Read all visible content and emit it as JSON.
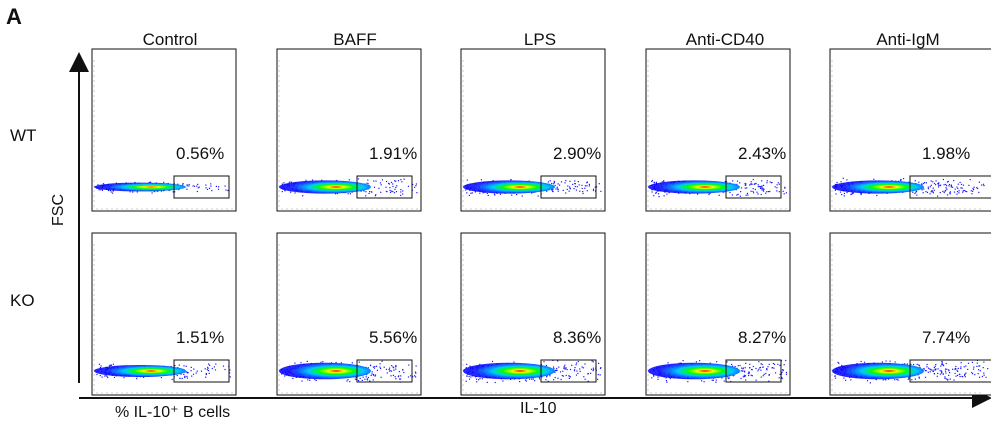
{
  "panel_letter": "A",
  "chart_data": {
    "type": "scatter",
    "xlabel": "IL-10",
    "ylabel": "FSC",
    "caption": "% IL-10⁺ B cells",
    "conditions": [
      "Control",
      "BAFF",
      "LPS",
      "Anti-CD40",
      "Anti-IgM"
    ],
    "rows": [
      {
        "name": "WT",
        "percents": [
          "0.56%",
          "1.91%",
          "2.90%",
          "2.43%",
          "1.98%"
        ]
      },
      {
        "name": "KO",
        "percents": [
          "1.51%",
          "5.56%",
          "8.36%",
          "8.27%",
          "7.74%"
        ]
      }
    ],
    "colors": {
      "low": "#0000ff",
      "mid": "#00c8ff",
      "midhigh": "#00ff00",
      "high": "#ffff00",
      "peak": "#ff0000"
    }
  }
}
